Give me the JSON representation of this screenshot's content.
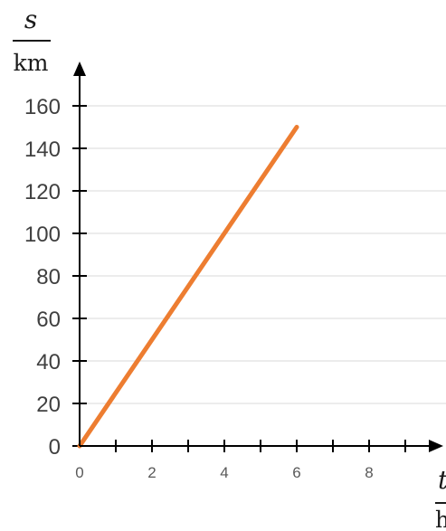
{
  "chart_data": {
    "type": "line",
    "title": "",
    "xlabel": "t",
    "xunit": "h",
    "ylabel": "s",
    "yunit": "km",
    "xlim": [
      0,
      10
    ],
    "ylim": [
      0,
      170
    ],
    "x_ticks": [
      0,
      2,
      4,
      6,
      8
    ],
    "x_tick_labels": [
      "0",
      "2",
      "4",
      "6",
      "8"
    ],
    "y_ticks": [
      0,
      20,
      40,
      60,
      80,
      100,
      120,
      140,
      160
    ],
    "y_tick_labels": [
      "0",
      "20",
      "40",
      "60",
      "80",
      "100",
      "120",
      "140",
      "160"
    ],
    "grid": "horizontal",
    "series": [
      {
        "x": [
          0,
          6
        ],
        "y": [
          0,
          150
        ],
        "color": "#ED7D31"
      }
    ]
  }
}
